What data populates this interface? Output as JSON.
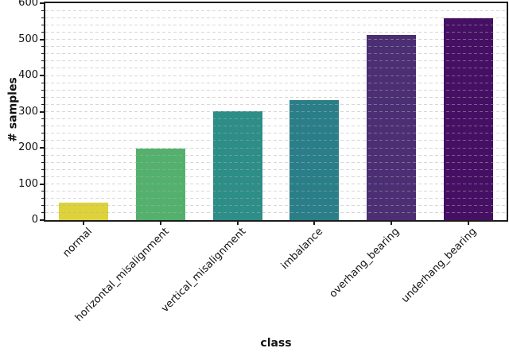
{
  "chart_data": {
    "type": "bar",
    "title": "",
    "xlabel": "class",
    "ylabel": "# samples",
    "categories": [
      "normal",
      "horizontal_misalignment",
      "vertical_misalignment",
      "imbalance",
      "overhang_bearing",
      "underhang_bearing"
    ],
    "values": [
      49,
      197,
      301,
      333,
      513,
      558
    ],
    "bar_colors": [
      "#ddd23a",
      "#53b16d",
      "#2d8d87",
      "#2a7e88",
      "#4b2e73",
      "#451063"
    ],
    "ylim": [
      0,
      600
    ],
    "yticks": [
      0,
      100,
      200,
      300,
      400,
      500,
      600
    ],
    "minor_tick_step": 20,
    "grid": {
      "axis": "y",
      "style": "dashed",
      "step": 20,
      "color": "#dcdcdc",
      "over_bars": true
    },
    "legend": null,
    "axis_color": "#1c1c1c",
    "background_color": "#ffffff",
    "bar_width_fraction": 0.64
  }
}
